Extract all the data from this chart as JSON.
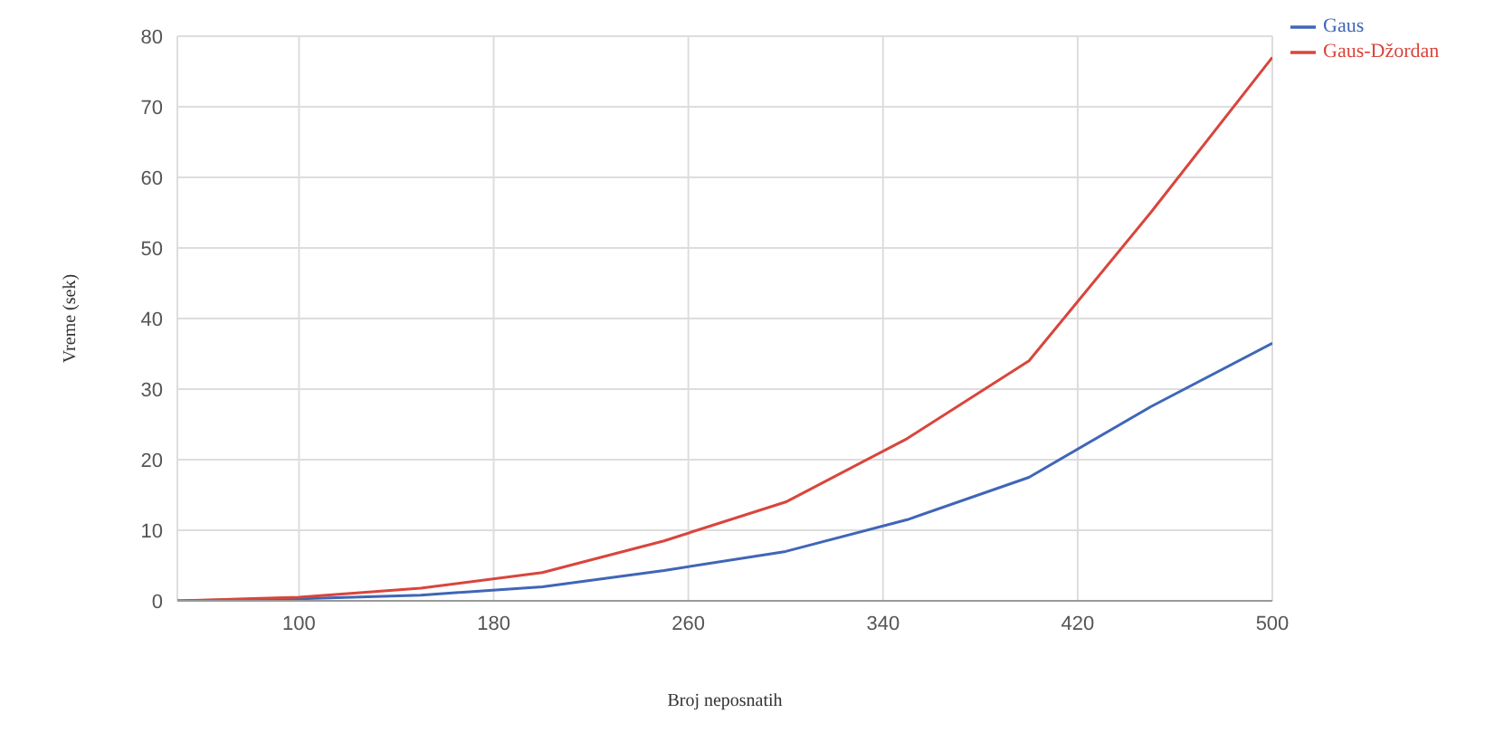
{
  "chart_data": {
    "type": "line",
    "xlabel": "Broj neposnatih",
    "ylabel": "Vreme (sek)",
    "x": [
      50,
      100,
      150,
      200,
      250,
      300,
      350,
      400,
      450,
      500
    ],
    "series": [
      {
        "name": "Gaus",
        "color": "#3f66b7",
        "values": [
          0,
          0.3,
          0.8,
          2,
          4.3,
          7,
          11.5,
          17.5,
          27.5,
          36.5
        ]
      },
      {
        "name": "Gaus-Džordan",
        "color": "#d9453c",
        "values": [
          0,
          0.5,
          1.8,
          4,
          8.5,
          14,
          23,
          34,
          55,
          77
        ]
      }
    ],
    "xlim": [
      50,
      500
    ],
    "xticks": [
      100,
      180,
      260,
      340,
      420,
      500
    ],
    "ylim": [
      0,
      80
    ],
    "yticks": [
      0,
      10,
      20,
      30,
      40,
      50,
      60,
      70,
      80
    ],
    "grid": true,
    "legend": "top right",
    "marker": "none",
    "line_style": "solid"
  }
}
